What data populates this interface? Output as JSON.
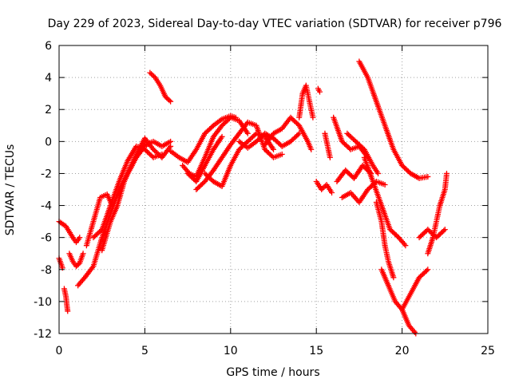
{
  "chart_data": {
    "type": "scatter",
    "title": "Day 229 of 2023, Sidereal Day-to-day VTEC variation (SDTVAR) for receiver p796",
    "xlabel": "GPS time / hours",
    "ylabel": "SDTVAR / TECUs",
    "xlim": [
      0,
      25
    ],
    "ylim": [
      -12,
      6
    ],
    "xticks": [
      "0",
      "5",
      "10",
      "15",
      "20",
      "25"
    ],
    "yticks": [
      "-12",
      "-10",
      "-8",
      "-6",
      "-4",
      "-2",
      "0",
      "2",
      "4",
      "6"
    ],
    "grid": true,
    "marker": "+",
    "color": "#ff0000",
    "series": [
      {
        "x": [
          0.0,
          0.4,
          0.8,
          1.0,
          1.2
        ],
        "y": [
          -5.0,
          -5.3,
          -6.0,
          -6.3,
          -6.0
        ]
      },
      {
        "x": [
          0.0,
          0.1,
          0.2
        ],
        "y": [
          -7.3,
          -7.6,
          -7.9
        ]
      },
      {
        "x": [
          0.3,
          0.4,
          0.45,
          0.5
        ],
        "y": [
          -9.2,
          -9.7,
          -10.2,
          -10.6
        ]
      },
      {
        "x": [
          0.6,
          0.8,
          1.0,
          1.2,
          1.4
        ],
        "y": [
          -7.0,
          -7.5,
          -7.8,
          -7.6,
          -7.0
        ]
      },
      {
        "x": [
          1.1,
          1.5,
          2.0,
          2.5,
          3.0,
          3.5,
          4.0,
          4.5,
          5.0,
          5.5,
          6.0,
          6.5
        ],
        "y": [
          -9.0,
          -8.5,
          -7.8,
          -6.0,
          -4.5,
          -3.0,
          -2.0,
          -1.0,
          -0.2,
          0.0,
          -0.3,
          0.0
        ]
      },
      {
        "x": [
          1.6,
          2.0,
          2.4,
          2.8,
          3.1
        ],
        "y": [
          -6.5,
          -5.0,
          -3.5,
          -3.3,
          -4.0
        ]
      },
      {
        "x": [
          2.0,
          2.5,
          3.0,
          3.5,
          4.0,
          4.5,
          5.0,
          5.5,
          6.0
        ],
        "y": [
          -6.0,
          -5.5,
          -4.0,
          -2.5,
          -1.2,
          -0.3,
          -0.5,
          -1.0,
          -0.8
        ]
      },
      {
        "x": [
          2.5,
          3.0,
          3.4,
          3.8,
          4.2,
          4.6,
          5.0,
          5.5,
          6.0,
          6.5
        ],
        "y": [
          -6.8,
          -5.0,
          -4.0,
          -2.5,
          -1.5,
          -0.6,
          0.2,
          -0.5,
          -1.0,
          -0.3
        ]
      },
      {
        "x": [
          3.5,
          4.0,
          4.5,
          5.0,
          5.3
        ],
        "y": [
          -3.0,
          -2.0,
          -1.0,
          -0.3,
          -0.1
        ]
      },
      {
        "x": [
          5.3,
          5.6,
          5.9,
          6.2,
          6.5
        ],
        "y": [
          4.3,
          4.0,
          3.5,
          2.8,
          2.5
        ]
      },
      {
        "x": [
          6.5,
          7.0,
          7.5,
          8.0,
          8.5,
          9.0,
          9.5,
          10.0,
          10.3
        ],
        "y": [
          -0.6,
          -1.0,
          -1.3,
          -0.5,
          0.5,
          1.0,
          1.4,
          1.6,
          1.5
        ]
      },
      {
        "x": [
          7.2,
          7.6,
          8.0,
          8.5,
          9.0,
          9.5,
          10.0,
          10.5,
          11.0
        ],
        "y": [
          -1.5,
          -2.0,
          -2.2,
          -1.0,
          0.3,
          1.0,
          1.5,
          1.3,
          0.5
        ]
      },
      {
        "x": [
          7.5,
          8.0,
          8.5,
          9.0,
          9.5
        ],
        "y": [
          -2.0,
          -2.5,
          -1.5,
          -0.5,
          0.3
        ]
      },
      {
        "x": [
          8.0,
          8.5,
          9.0,
          9.5,
          10.0,
          10.5,
          11.0,
          11.5,
          12.0,
          12.5,
          13.0
        ],
        "y": [
          -3.0,
          -2.5,
          -1.8,
          -1.0,
          -0.2,
          0.5,
          1.2,
          1.0,
          -0.5,
          -1.0,
          -0.8
        ]
      },
      {
        "x": [
          8.5,
          9.0,
          9.5,
          10.0,
          10.5,
          11.0,
          11.5,
          12.0,
          12.5
        ],
        "y": [
          -2.0,
          -2.5,
          -2.8,
          -1.5,
          -0.5,
          0.0,
          0.5,
          0.3,
          -0.5
        ]
      },
      {
        "x": [
          10.5,
          11.0,
          11.5,
          12.0,
          12.5,
          13.0,
          13.5,
          14.0
        ],
        "y": [
          0.0,
          -0.4,
          0.0,
          0.5,
          0.2,
          -0.3,
          0.0,
          0.5
        ]
      },
      {
        "x": [
          12.0,
          12.5,
          13.0,
          13.5,
          14.0,
          14.5,
          14.7
        ],
        "y": [
          -0.2,
          0.5,
          0.8,
          1.5,
          1.0,
          0.0,
          -0.5
        ]
      },
      {
        "x": [
          14.0,
          14.2,
          14.4,
          14.6,
          14.8
        ],
        "y": [
          1.5,
          3.0,
          3.5,
          2.5,
          1.5
        ]
      },
      {
        "x": [
          15.1,
          15.2
        ],
        "y": [
          3.3,
          3.1
        ]
      },
      {
        "x": [
          15.0,
          15.3,
          15.6,
          15.9
        ],
        "y": [
          -2.5,
          -3.0,
          -2.7,
          -3.2
        ]
      },
      {
        "x": [
          15.5,
          15.8
        ],
        "y": [
          0.5,
          -1.0
        ]
      },
      {
        "x": [
          16.0,
          16.5,
          17.0,
          17.5,
          18.0
        ],
        "y": [
          1.5,
          0.0,
          -0.5,
          -0.3,
          -1.0
        ]
      },
      {
        "x": [
          16.2,
          16.7,
          17.2,
          17.7,
          18.2
        ],
        "y": [
          -2.5,
          -1.8,
          -2.3,
          -1.5,
          -2.0
        ]
      },
      {
        "x": [
          16.5,
          17.0,
          17.5,
          18.0,
          18.5,
          19.0
        ],
        "y": [
          -3.5,
          -3.2,
          -3.8,
          -3.0,
          -2.5,
          -2.7
        ]
      },
      {
        "x": [
          16.8,
          17.3,
          17.8,
          18.3,
          18.6
        ],
        "y": [
          0.5,
          0.0,
          -0.5,
          -1.5,
          -2.0
        ]
      },
      {
        "x": [
          17.5,
          18.0,
          18.5,
          19.0,
          19.5,
          20.0,
          20.5,
          21.0,
          21.5
        ],
        "y": [
          5.0,
          4.0,
          2.5,
          1.0,
          -0.5,
          -1.5,
          -2.0,
          -2.3,
          -2.2
        ]
      },
      {
        "x": [
          17.8,
          18.3,
          18.8,
          19.3,
          19.8,
          20.2
        ],
        "y": [
          -1.0,
          -2.5,
          -4.0,
          -5.5,
          -6.0,
          -6.5
        ]
      },
      {
        "x": [
          18.5,
          18.8,
          19.0,
          19.2,
          19.5
        ],
        "y": [
          -3.8,
          -5.0,
          -6.5,
          -7.5,
          -8.5
        ]
      },
      {
        "x": [
          18.8,
          19.2,
          19.6,
          20.0,
          20.4,
          20.8
        ],
        "y": [
          -8.0,
          -9.0,
          -10.0,
          -10.5,
          -11.5,
          -12.0
        ]
      },
      {
        "x": [
          20.0,
          20.5,
          21.0,
          21.5
        ],
        "y": [
          -10.5,
          -9.5,
          -8.5,
          -8.0
        ]
      },
      {
        "x": [
          21.0,
          21.5,
          22.0,
          22.5
        ],
        "y": [
          -6.0,
          -5.5,
          -6.0,
          -5.5
        ]
      },
      {
        "x": [
          21.5,
          21.8,
          22.0,
          22.2,
          22.5,
          22.6
        ],
        "y": [
          -7.0,
          -6.0,
          -5.0,
          -4.0,
          -3.0,
          -2.0
        ]
      }
    ]
  }
}
